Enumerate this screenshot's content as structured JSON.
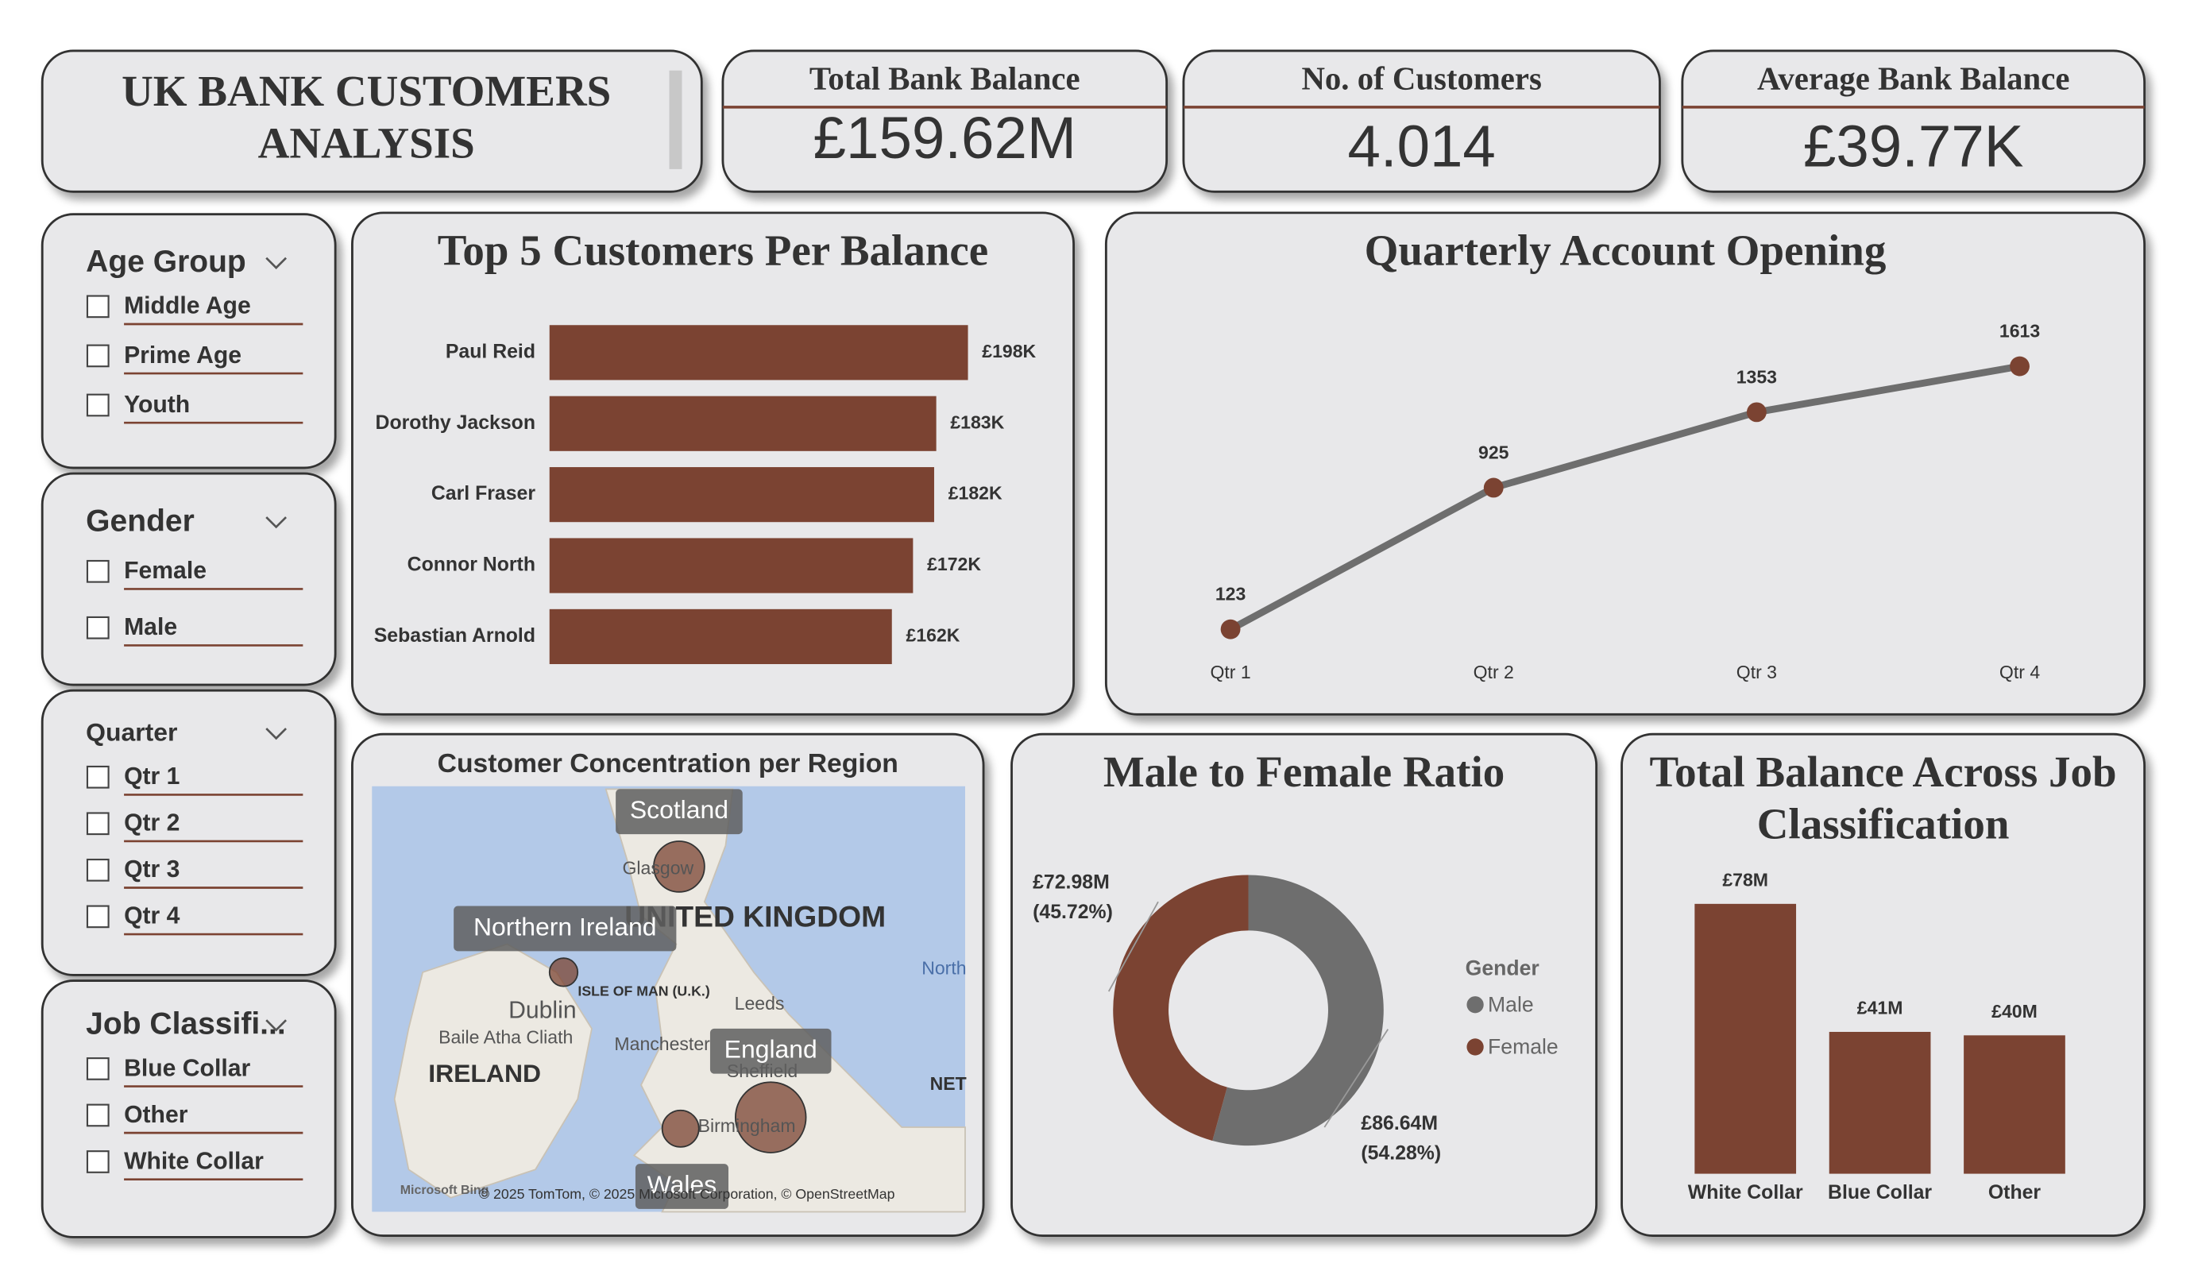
{
  "title": "UK BANK CUSTOMERS ANALYSIS",
  "kpis": [
    {
      "label": "Total Bank Balance",
      "value": "£159.62M"
    },
    {
      "label": "No. of Customers",
      "value": "4.014"
    },
    {
      "label": "Average Bank Balance",
      "value": "£39.77K"
    }
  ],
  "filters": [
    {
      "title": "Age Group",
      "options": [
        "Middle Age",
        "Prime Age",
        "Youth"
      ]
    },
    {
      "title": "Gender",
      "options": [
        "Female",
        "Male"
      ]
    },
    {
      "title": "Quarter",
      "options": [
        "Qtr 1",
        "Qtr 2",
        "Qtr 3",
        "Qtr 4"
      ]
    },
    {
      "title": "Job Classifi...",
      "options": [
        "Blue Collar",
        "Other",
        "White Collar"
      ]
    }
  ],
  "chart_data": [
    {
      "type": "bar",
      "orientation": "horizontal",
      "title": "Top 5 Customers Per Balance",
      "categories": [
        "Paul Reid",
        "Dorothy Jackson",
        "Carl Fraser",
        "Connor North",
        "Sebastian Arnold"
      ],
      "values": [
        198,
        183,
        182,
        172,
        162
      ],
      "value_labels": [
        "£198K",
        "£183K",
        "£182K",
        "£172K",
        "£162K"
      ],
      "color": "#7b4332",
      "xlim": [
        0,
        230
      ]
    },
    {
      "type": "line",
      "title": "Quarterly Account Opening",
      "categories": [
        "Qtr 1",
        "Qtr 2",
        "Qtr 3",
        "Qtr 4"
      ],
      "values": [
        123,
        925,
        1353,
        1613
      ],
      "color": "#6e6e6e",
      "marker_color": "#7b4332",
      "ylim": [
        0,
        1800
      ]
    },
    {
      "type": "map",
      "title": "Customer Concentration per Region",
      "regions": [
        "Scotland",
        "Northern Ireland",
        "England",
        "Wales"
      ],
      "place_labels": [
        "UNITED KINGDOM",
        "IRELAND",
        "Dublin",
        "Baile Atha Cliath",
        "Glasgow",
        "Leeds",
        "Manchester",
        "Sheffield",
        "Birmingham",
        "ISLE OF MAN (U.K.)",
        "North",
        "NET"
      ],
      "logo": "Microsoft Bing",
      "attribution": "© 2025 TomTom, © 2025 Microsoft Corporation, © OpenStreetMap"
    },
    {
      "type": "pie",
      "title": "Male to Female Ratio",
      "hole": 0.59,
      "legend_title": "Gender",
      "categories": [
        "Male",
        "Female"
      ],
      "values": [
        86.64,
        72.98
      ],
      "value_labels": [
        [
          "£86.64M",
          "(54.28%)"
        ],
        [
          "£72.98M",
          "(45.72%)"
        ]
      ],
      "colors": [
        "#6e6e6e",
        "#7b4332"
      ]
    },
    {
      "type": "bar",
      "orientation": "vertical",
      "title": "Total Balance Across Job Classification",
      "categories": [
        "White Collar",
        "Blue Collar",
        "Other"
      ],
      "values": [
        78,
        41,
        40
      ],
      "value_labels": [
        "£78M",
        "£41M",
        "£40M"
      ],
      "color": "#7b4332",
      "ylim": [
        0,
        90
      ]
    }
  ]
}
